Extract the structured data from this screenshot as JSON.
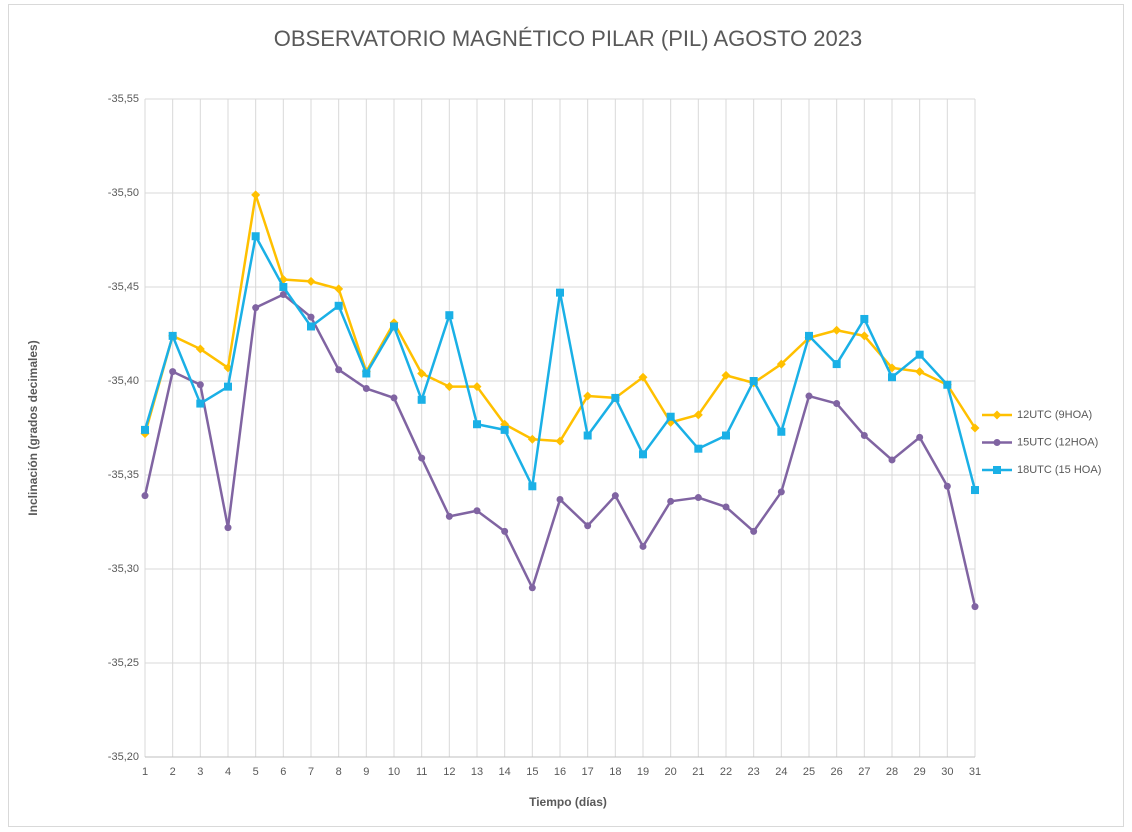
{
  "chart_data": {
    "type": "line",
    "title": "OBSERVATORIO MAGNÉTICO PILAR (PIL) AGOSTO 2023",
    "x_label": "Tiempo (días)",
    "y_label": "Inclinación (grados decimales)",
    "categories": [
      "1",
      "2",
      "3",
      "4",
      "5",
      "6",
      "7",
      "8",
      "9",
      "10",
      "11",
      "12",
      "13",
      "14",
      "15",
      "16",
      "17",
      "18",
      "19",
      "20",
      "21",
      "22",
      "23",
      "24",
      "25",
      "26",
      "27",
      "28",
      "29",
      "30",
      "31"
    ],
    "ylim": [
      -35.2,
      -35.55
    ],
    "yticks": [
      {
        "value": -35.2,
        "label": "-35,20"
      },
      {
        "value": -35.25,
        "label": "-35,25"
      },
      {
        "value": -35.3,
        "label": "-35,30"
      },
      {
        "value": -35.35,
        "label": "-35,35"
      },
      {
        "value": -35.4,
        "label": "-35,40"
      },
      {
        "value": -35.45,
        "label": "-35,45"
      },
      {
        "value": -35.5,
        "label": "-35,50"
      },
      {
        "value": -35.55,
        "label": "-35,55"
      }
    ],
    "grid": true,
    "legend": "right",
    "series": [
      {
        "name": "12UTC (9HOA)",
        "color": "#FFC000",
        "marker": "diamond",
        "values": [
          -35.372,
          -35.424,
          -35.417,
          -35.407,
          -35.499,
          -35.454,
          -35.453,
          -35.449,
          -35.405,
          -35.431,
          -35.404,
          -35.397,
          -35.397,
          -35.377,
          -35.369,
          -35.368,
          -35.392,
          -35.391,
          -35.402,
          -35.378,
          -35.382,
          -35.403,
          -35.399,
          -35.409,
          -35.423,
          -35.427,
          -35.424,
          -35.407,
          -35.405,
          -35.398,
          -35.375
        ]
      },
      {
        "name": "15UTC (12HOA)",
        "color": "#8064A2",
        "marker": "circle",
        "values": [
          -35.339,
          -35.405,
          -35.398,
          -35.322,
          -35.439,
          -35.446,
          -35.434,
          -35.406,
          -35.396,
          -35.391,
          -35.359,
          -35.328,
          -35.331,
          -35.32,
          -35.29,
          -35.337,
          -35.323,
          -35.339,
          -35.312,
          -35.336,
          -35.338,
          -35.333,
          -35.32,
          -35.341,
          -35.392,
          -35.388,
          -35.371,
          -35.358,
          -35.37,
          -35.344,
          -35.28
        ]
      },
      {
        "name": "18UTC (15 HOA)",
        "color": "#1AB0E6",
        "marker": "square",
        "values": [
          -35.374,
          -35.424,
          -35.388,
          -35.397,
          -35.477,
          -35.45,
          -35.429,
          -35.44,
          -35.404,
          -35.429,
          -35.39,
          -35.435,
          -35.377,
          -35.374,
          -35.344,
          -35.447,
          -35.371,
          -35.391,
          -35.361,
          -35.381,
          -35.364,
          -35.371,
          -35.4,
          -35.373,
          -35.424,
          -35.409,
          -35.433,
          -35.402,
          -35.414,
          -35.398,
          -35.342
        ]
      }
    ]
  }
}
